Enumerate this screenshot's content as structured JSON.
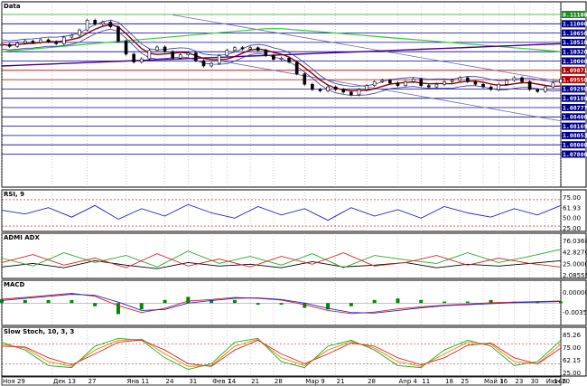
{
  "colors": {
    "frame": "#000000",
    "grid": "#9a9a9a",
    "price": "#000000",
    "sma_fast": "#8b0000",
    "sma_green": "#33cc33",
    "sma_purple": "#4b0082",
    "bollinger": "#3333aa",
    "channel": "#6a6ab0",
    "hline": "#0000aa",
    "rsi": "#2222cc",
    "adx": "#000000",
    "dmi_plus": "#22aa22",
    "dmi_minus": "#dd2222",
    "macd_line": "#cc2222",
    "macd_signal": "#2222cc",
    "macd_hist": "#008800",
    "stoch_k": "#22aa22",
    "stoch_d": "#dd8800",
    "stoch_slow": "#dd2222"
  },
  "chart_data": [
    {
      "type": "line",
      "title": "Data",
      "ylim": [
        0.9855,
        1.1195
      ],
      "x": [
        0,
        2,
        4,
        6,
        8,
        10,
        12,
        14,
        16,
        18,
        20,
        22,
        24,
        26,
        28,
        30,
        32,
        34,
        36,
        38,
        40,
        42,
        44,
        46,
        48,
        50,
        52,
        54,
        56,
        58,
        60,
        62,
        64,
        66,
        68,
        70,
        72,
        74,
        76,
        78,
        80,
        82,
        84,
        86,
        88,
        90,
        92,
        94,
        96,
        98,
        100,
        102,
        104,
        106,
        108,
        110,
        112,
        114,
        116,
        118,
        120,
        122,
        124,
        126,
        128,
        130,
        132,
        134,
        136,
        138,
        140,
        142,
        144
      ],
      "series": [
        {
          "name": "",
          "values": [
            1.0925,
            1.091,
            1.0935,
            1.095,
            1.094,
            1.096,
            1.0945,
            1.093,
            1.098,
            1.0995,
            1.1035,
            1.111,
            1.108,
            1.1095,
            1.106,
            1.095,
            1.085,
            1.079,
            1.0815,
            1.088,
            1.0905,
            1.087,
            1.082,
            1.0845,
            1.086,
            1.08,
            1.076,
            1.078,
            1.084,
            1.088,
            1.09,
            1.089,
            1.09,
            1.088,
            1.084,
            1.081,
            1.082,
            1.079,
            1.07,
            1.062,
            1.058,
            1.057,
            1.06,
            1.058,
            1.056,
            1.054,
            1.058,
            1.061,
            1.064,
            1.065,
            1.063,
            1.061,
            1.064,
            1.066,
            1.061,
            1.06,
            1.062,
            1.064,
            1.065,
            1.067,
            1.064,
            1.062,
            1.06,
            1.058,
            1.062,
            1.065,
            1.067,
            1.064,
            1.058,
            1.0565,
            1.06,
            1.063,
            1.066
          ]
        }
      ],
      "price_labels": [
        "0.11100",
        "1.11000",
        "1.10650",
        "1.10510",
        "1.10320",
        "1.10000",
        "1.09871",
        "1.09558",
        "1.09298",
        "1.09180",
        "1.08777",
        "1.08400",
        "1.08169",
        "1.08053",
        "1.08000",
        "1.07800"
      ]
    },
    {
      "type": "line",
      "title": "RSI, 9",
      "ylim": [
        20,
        80
      ],
      "x": [
        0,
        6,
        12,
        18,
        24,
        30,
        36,
        42,
        48,
        54,
        60,
        66,
        72,
        78,
        84,
        90,
        96,
        102,
        108,
        114,
        120,
        126,
        132,
        138,
        144
      ],
      "series": [
        {
          "name": "",
          "values": [
            55,
            48,
            60,
            42,
            64,
            38,
            58,
            44,
            66,
            50,
            40,
            62,
            46,
            58,
            36,
            60,
            44,
            56,
            40,
            62,
            50,
            42,
            58,
            46,
            64
          ]
        }
      ],
      "levels": [
        75,
        25
      ],
      "labels": [
        "75.00",
        "61.93",
        "50.00",
        "25.00"
      ]
    },
    {
      "type": "line",
      "title": "ADMI ADX",
      "ylim": [
        0,
        80
      ],
      "x": [
        0,
        8,
        16,
        24,
        32,
        40,
        48,
        56,
        64,
        72,
        80,
        88,
        96,
        104,
        112,
        120,
        128,
        136,
        144
      ],
      "series": [
        {
          "name": "",
          "values": [
            20,
            28,
            18,
            34,
            24,
            16,
            30,
            22,
            26,
            18,
            32,
            20,
            24,
            30,
            18,
            26,
            22,
            28,
            34
          ]
        },
        {
          "name": "",
          "values": [
            40,
            22,
            52,
            30,
            46,
            20,
            56,
            28,
            44,
            24,
            50,
            18,
            46,
            36,
            28,
            52,
            30,
            44,
            60
          ]
        },
        {
          "name": "",
          "values": [
            30,
            48,
            24,
            40,
            18,
            50,
            22,
            38,
            20,
            44,
            26,
            52,
            22,
            30,
            46,
            24,
            40,
            28,
            20
          ]
        }
      ],
      "labels": [
        "76.03686",
        "42.82701",
        "25.00000",
        "2.08555"
      ]
    },
    {
      "type": "bar",
      "title": "MACD",
      "ylim": [
        -0.0075,
        0.006
      ],
      "x": [
        0,
        6,
        12,
        18,
        24,
        30,
        36,
        42,
        48,
        54,
        60,
        66,
        72,
        78,
        84,
        90,
        96,
        102,
        108,
        114,
        120,
        126,
        132,
        138,
        144
      ],
      "series": [
        {
          "name": "",
          "values": [
            0.0015,
            0.0022,
            0.003,
            0.0038,
            0.0026,
            -0.001,
            -0.0036,
            -0.002,
            0.0008,
            0.0014,
            0.0022,
            0.0018,
            0.0012,
            -0.0006,
            -0.0028,
            -0.004,
            -0.0034,
            -0.0022,
            -0.0014,
            -0.0008,
            -0.0004,
            0.0002,
            0.0004,
            0.0006,
            0.0008
          ]
        },
        {
          "name": "",
          "values": [
            0.001,
            0.0018,
            0.0026,
            0.0034,
            0.003,
            0.0004,
            -0.0028,
            -0.0024,
            0.0,
            0.001,
            0.0018,
            0.002,
            0.0014,
            0.0,
            -0.002,
            -0.0036,
            -0.0038,
            -0.0028,
            -0.0018,
            -0.001,
            -0.0006,
            -0.0002,
            0.0002,
            0.0004,
            0.0006
          ]
        },
        {
          "name": "",
          "values": [
            0.0005,
            0.0004,
            0.0004,
            0.0004,
            -0.0004,
            -0.0014,
            -0.0008,
            0.0004,
            0.0008,
            0.0004,
            0.0004,
            -0.0002,
            -0.0002,
            -0.0006,
            -0.0008,
            -0.0004,
            0.0004,
            0.0006,
            0.0004,
            0.0002,
            0.0002,
            0.0004,
            0.0002,
            0.0002,
            0.0002
          ]
        }
      ],
      "labels": [
        "0.00000",
        "-0.00350"
      ]
    },
    {
      "type": "line",
      "title": "Slow Stoch, 10, 3, 3",
      "ylim": [
        0,
        100
      ],
      "x": [
        0,
        6,
        12,
        18,
        24,
        30,
        36,
        42,
        48,
        54,
        60,
        66,
        72,
        78,
        84,
        90,
        96,
        102,
        108,
        114,
        120,
        126,
        132,
        138,
        144
      ],
      "series": [
        {
          "name": "",
          "values": [
            80,
            60,
            20,
            15,
            70,
            90,
            85,
            40,
            10,
            25,
            80,
            90,
            30,
            15,
            70,
            85,
            60,
            20,
            15,
            60,
            85,
            70,
            20,
            30,
            85
          ]
        },
        {
          "name": "",
          "values": [
            75,
            65,
            30,
            18,
            60,
            85,
            88,
            50,
            18,
            20,
            70,
            88,
            40,
            20,
            60,
            82,
            65,
            30,
            18,
            50,
            80,
            75,
            30,
            25,
            75
          ]
        },
        {
          "name": "",
          "values": [
            70,
            68,
            40,
            22,
            50,
            80,
            86,
            60,
            25,
            18,
            60,
            85,
            50,
            25,
            50,
            78,
            70,
            40,
            22,
            40,
            72,
            78,
            40,
            24,
            65
          ]
        }
      ],
      "levels": [
        75,
        25
      ],
      "labels": [
        "85.26",
        "75.00",
        "62.15",
        "25.00"
      ]
    }
  ],
  "x_axis": {
    "ticks": [
      {
        "i": 0,
        "label": "Ноя 29"
      },
      {
        "i": 13,
        "label": "Дек 13"
      },
      {
        "i": 22,
        "label": "27"
      },
      {
        "i": 32,
        "label": "Янв 11"
      },
      {
        "i": 42,
        "label": "24"
      },
      {
        "i": 48,
        "label": "31"
      },
      {
        "i": 54,
        "label": "Фев 7"
      },
      {
        "i": 58,
        "label": "14"
      },
      {
        "i": 64,
        "label": "21"
      },
      {
        "i": 70,
        "label": "28"
      },
      {
        "i": 78,
        "label": "Мар 9"
      },
      {
        "i": 86,
        "label": "21"
      },
      {
        "i": 94,
        "label": "28"
      },
      {
        "i": 102,
        "label": "Апр 4"
      },
      {
        "i": 108,
        "label": "11"
      },
      {
        "i": 114,
        "label": "18"
      },
      {
        "i": 118,
        "label": "25"
      },
      {
        "i": 124,
        "label": "Май 3"
      },
      {
        "i": 128,
        "label": "16"
      },
      {
        "i": 132,
        "label": "23"
      },
      {
        "i": 136,
        "label": "30"
      },
      {
        "i": 140,
        "label": "Июн 6"
      },
      {
        "i": 142,
        "label": "14"
      },
      {
        "i": 144,
        "label": "20"
      }
    ]
  }
}
